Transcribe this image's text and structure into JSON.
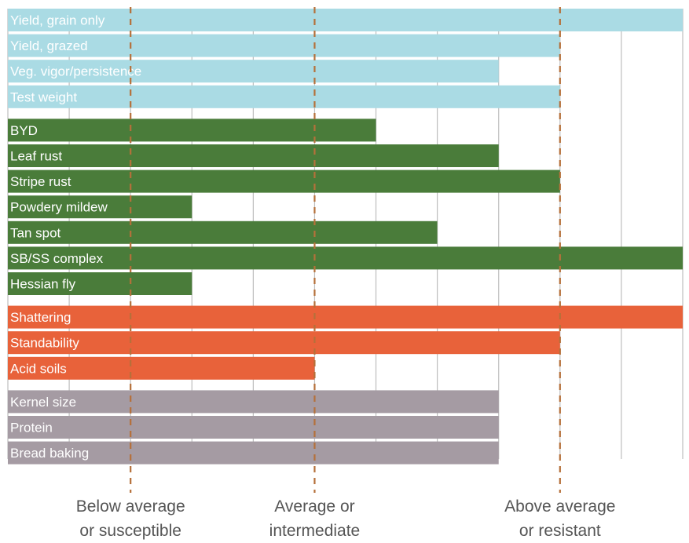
{
  "chart_data": {
    "type": "bar",
    "orientation": "horizontal",
    "xlim": [
      0,
      11
    ],
    "grid": true,
    "reference_lines": [
      {
        "x": 2,
        "label_line1": "Below average",
        "label_line2": "or susceptible"
      },
      {
        "x": 5,
        "label_line1": "Average or",
        "label_line2": "intermediate"
      },
      {
        "x": 9,
        "label_line1": "Above average",
        "label_line2": "or resistant"
      }
    ],
    "groups": [
      {
        "color": "#aadbe4",
        "bars": [
          {
            "label": "Yield, grain only",
            "value": 11
          },
          {
            "label": "Yield, grazed",
            "value": 9
          },
          {
            "label": "Veg. vigor/persistence",
            "value": 8
          },
          {
            "label": "Test weight",
            "value": 9
          }
        ]
      },
      {
        "color": "#4a7c3a",
        "bars": [
          {
            "label": "BYD",
            "value": 6
          },
          {
            "label": "Leaf rust",
            "value": 8
          },
          {
            "label": "Stripe rust",
            "value": 9
          },
          {
            "label": "Powdery mildew",
            "value": 3
          },
          {
            "label": "Tan spot",
            "value": 7
          },
          {
            "label": "SB/SS complex",
            "value": 11
          },
          {
            "label": "Hessian fly",
            "value": 3
          }
        ]
      },
      {
        "color": "#e8623a",
        "bars": [
          {
            "label": "Shattering",
            "value": 11
          },
          {
            "label": "Standability",
            "value": 9
          },
          {
            "label": "Acid soils",
            "value": 5
          }
        ]
      },
      {
        "color": "#a59ba3",
        "bars": [
          {
            "label": "Kernel size",
            "value": 8
          },
          {
            "label": "Protein",
            "value": 8
          },
          {
            "label": "Bread baking",
            "value": 8
          }
        ]
      }
    ]
  }
}
